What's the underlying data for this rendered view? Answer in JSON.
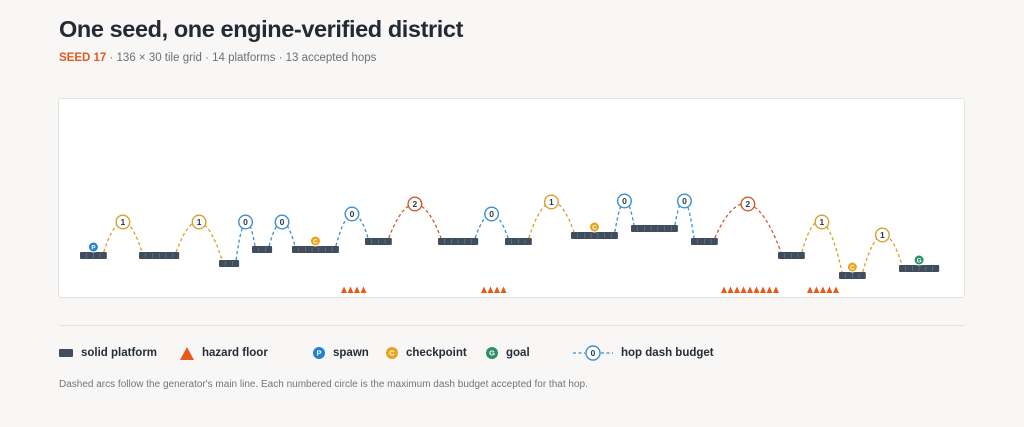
{
  "header": {
    "title": "One seed, one engine-verified district",
    "seed_label": "SEED 17",
    "summary": " · 136 × 30 tile grid · 14 platforms · 13 accepted hops"
  },
  "colors": {
    "platform": "#3f4d5c",
    "hazard": "#e8591a",
    "spawn": "#2380d2",
    "checkpoint": "#eaa31f",
    "goal": "#2d8f66",
    "budget0": "#3b8fd4",
    "budget1": "#d9a02b",
    "budget2": "#cf5a30"
  },
  "diagram": {
    "grid": {
      "cols": 136,
      "rows": 30
    },
    "platforms": [
      {
        "id": 1,
        "tiles": 4
      },
      {
        "id": 2,
        "tiles": 6
      },
      {
        "id": 3,
        "tiles": 3
      },
      {
        "id": 4,
        "tiles": 3
      },
      {
        "id": 5,
        "tiles": 7
      },
      {
        "id": 6,
        "tiles": 4
      },
      {
        "id": 7,
        "tiles": 6
      },
      {
        "id": 8,
        "tiles": 4
      },
      {
        "id": 9,
        "tiles": 7
      },
      {
        "id": 10,
        "tiles": 7
      },
      {
        "id": 11,
        "tiles": 4
      },
      {
        "id": 12,
        "tiles": 4
      },
      {
        "id": 13,
        "tiles": 4
      },
      {
        "id": 14,
        "tiles": 6
      }
    ],
    "markers": [
      {
        "type": "spawn",
        "letter": "P",
        "platform": 1
      },
      {
        "type": "checkpoint",
        "letter": "C",
        "platform": 5
      },
      {
        "type": "checkpoint",
        "letter": "C",
        "platform": 9
      },
      {
        "type": "checkpoint",
        "letter": "C",
        "platform": 13
      },
      {
        "type": "goal",
        "letter": "G",
        "platform": 14
      }
    ],
    "hops": [
      {
        "from": 1,
        "to": 2,
        "budget": 1
      },
      {
        "from": 2,
        "to": 3,
        "budget": 1
      },
      {
        "from": 3,
        "to": 4,
        "budget": 0
      },
      {
        "from": 4,
        "to": 5,
        "budget": 0
      },
      {
        "from": 5,
        "to": 6,
        "budget": 0
      },
      {
        "from": 6,
        "to": 7,
        "budget": 2
      },
      {
        "from": 7,
        "to": 8,
        "budget": 0
      },
      {
        "from": 8,
        "to": 9,
        "budget": 1
      },
      {
        "from": 9,
        "to": 10,
        "budget": 0
      },
      {
        "from": 10,
        "to": 11,
        "budget": 0
      },
      {
        "from": 11,
        "to": 12,
        "budget": 2
      },
      {
        "from": 12,
        "to": 13,
        "budget": 1
      },
      {
        "from": 13,
        "to": 14,
        "budget": 1
      }
    ],
    "hazards": [
      {
        "count": 4
      },
      {
        "count": 4
      },
      {
        "count": 9
      },
      {
        "count": 5
      }
    ]
  },
  "legend": {
    "platform": "solid platform",
    "hazard": "hazard floor",
    "spawn": "spawn",
    "spawn_letter": "P",
    "checkpoint": "checkpoint",
    "checkpoint_letter": "C",
    "goal": "goal",
    "goal_letter": "G",
    "hop": "hop dash budget",
    "hop_sample": "0"
  },
  "footnote": "Dashed arcs follow the generator's main line. Each numbered circle is the maximum dash budget accepted for that hop."
}
